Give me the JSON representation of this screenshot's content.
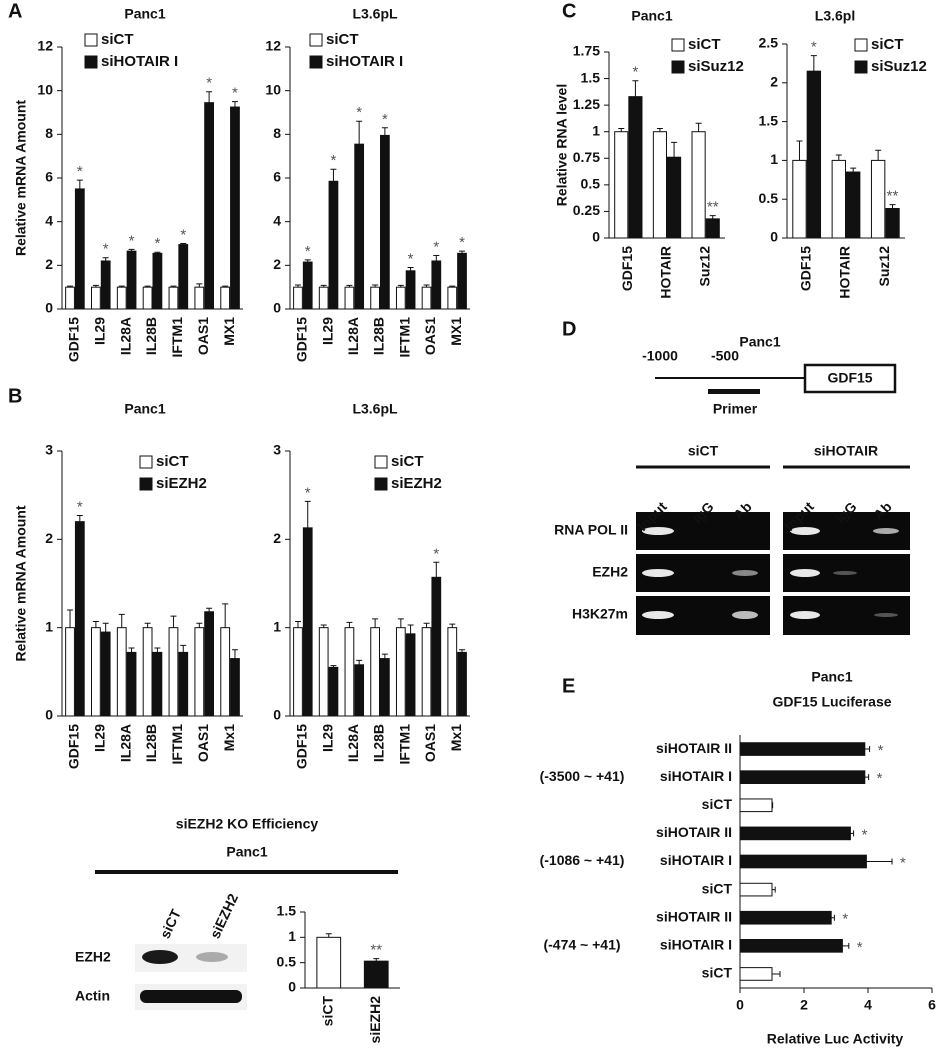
{
  "panel_labels": [
    "A",
    "B",
    "C",
    "D",
    "E"
  ],
  "chart_data": [
    {
      "type": "bar",
      "title": "Panc1",
      "y_label": "Relative mRNA Amount",
      "categories": [
        "GDF15",
        "IL29",
        "IL28A",
        "IL28B",
        "IFTM1",
        "OAS1",
        "MX1"
      ],
      "series": [
        {
          "name": "siCT",
          "color": "#ffffff",
          "values": [
            1,
            1,
            1,
            1,
            1,
            1,
            1
          ],
          "errors": [
            0.05,
            0.08,
            0.05,
            0.05,
            0.05,
            0.15,
            0.05
          ],
          "annotations": [
            null,
            null,
            null,
            null,
            null,
            null,
            null
          ]
        },
        {
          "name": "siHOTAIR I",
          "color": "#111111",
          "values": [
            5.5,
            2.2,
            2.65,
            2.55,
            2.95,
            9.45,
            9.25
          ],
          "errors": [
            0.4,
            0.15,
            0.08,
            0.05,
            0.05,
            0.5,
            0.25
          ],
          "annotations": [
            "*",
            "*",
            "*",
            "*",
            "*",
            "*",
            "*"
          ]
        }
      ],
      "ylim": [
        0,
        12
      ],
      "yticks": [
        0,
        2,
        4,
        6,
        8,
        10,
        12
      ],
      "grid": false
    },
    {
      "type": "bar",
      "title": "L3.6pL",
      "categories": [
        "GDF15",
        "IL29",
        "IL28A",
        "IL28B",
        "IFTM1",
        "OAS1",
        "MX1"
      ],
      "series": [
        {
          "name": "siCT",
          "color": "#ffffff",
          "values": [
            1,
            1,
            1,
            1,
            1,
            1,
            1
          ],
          "errors": [
            0.1,
            0.08,
            0.08,
            0.1,
            0.08,
            0.1,
            0.05
          ],
          "annotations": [
            null,
            null,
            null,
            null,
            null,
            null,
            null
          ]
        },
        {
          "name": "siHOTAIR I",
          "color": "#111111",
          "values": [
            2.15,
            5.85,
            7.55,
            7.95,
            1.75,
            2.2,
            2.55
          ],
          "errors": [
            0.1,
            0.55,
            1.05,
            0.35,
            0.15,
            0.25,
            0.1
          ],
          "annotations": [
            "*",
            "*",
            "*",
            "*",
            "*",
            "*",
            "*"
          ]
        }
      ],
      "ylim": [
        0,
        12
      ],
      "yticks": [
        0,
        2,
        4,
        6,
        8,
        10,
        12
      ],
      "grid": false
    },
    {
      "type": "bar",
      "title": "Panc1",
      "y_label": "Relative  RNA level",
      "categories": [
        "GDF15",
        "HOTAIR",
        "Suz12"
      ],
      "series": [
        {
          "name": "siCT",
          "color": "#ffffff",
          "values": [
            1,
            1,
            1
          ],
          "errors": [
            0.03,
            0.03,
            0.08
          ],
          "annotations": [
            null,
            null,
            null
          ]
        },
        {
          "name": "siSuz12",
          "color": "#111111",
          "values": [
            1.33,
            0.76,
            0.18
          ],
          "errors": [
            0.15,
            0.14,
            0.03
          ],
          "annotations": [
            "*",
            null,
            "**"
          ]
        }
      ],
      "ylim": [
        0,
        1.75
      ],
      "yticks": [
        0,
        0.25,
        0.5,
        0.75,
        1,
        1.25,
        1.5,
        1.75
      ],
      "grid": false
    },
    {
      "type": "bar",
      "title": "L3.6pl",
      "categories": [
        "GDF15",
        "HOTAIR",
        "Suz12"
      ],
      "series": [
        {
          "name": "siCT",
          "color": "#ffffff",
          "values": [
            1,
            1,
            1
          ],
          "errors": [
            0.25,
            0.07,
            0.13
          ],
          "annotations": [
            null,
            null,
            null
          ]
        },
        {
          "name": "siSuz12",
          "color": "#111111",
          "values": [
            2.15,
            0.85,
            0.38
          ],
          "errors": [
            0.2,
            0.05,
            0.05
          ],
          "annotations": [
            "*",
            null,
            "**"
          ]
        }
      ],
      "ylim": [
        0,
        2.5
      ],
      "yticks": [
        0,
        0.5,
        1,
        1.5,
        2,
        2.5
      ],
      "grid": false
    },
    {
      "type": "bar",
      "title": "Panc1",
      "y_label": "Relative mRNA Amount",
      "categories": [
        "GDF15",
        "IL29",
        "IL28A",
        "IL28B",
        "IFTM1",
        "OAS1",
        "Mx1"
      ],
      "series": [
        {
          "name": "siCT",
          "color": "#ffffff",
          "values": [
            1,
            1,
            1,
            1,
            1,
            1,
            1
          ],
          "errors": [
            0.2,
            0.07,
            0.15,
            0.05,
            0.13,
            0.05,
            0.27
          ],
          "annotations": [
            null,
            null,
            null,
            null,
            null,
            null,
            null
          ]
        },
        {
          "name": "siEZH2",
          "color": "#111111",
          "values": [
            2.2,
            0.95,
            0.72,
            0.72,
            0.72,
            1.18,
            0.65
          ],
          "errors": [
            0.07,
            0.1,
            0.05,
            0.05,
            0.08,
            0.04,
            0.1
          ],
          "annotations": [
            "*",
            null,
            null,
            null,
            null,
            null,
            null
          ]
        }
      ],
      "ylim": [
        0,
        3
      ],
      "yticks": [
        0,
        1,
        2,
        3
      ],
      "grid": false
    },
    {
      "type": "bar",
      "title": "L3.6pL",
      "categories": [
        "GDF15",
        "IL29",
        "IL28A",
        "IL28B",
        "IFTM1",
        "OAS1",
        "Mx1"
      ],
      "series": [
        {
          "name": "siCT",
          "color": "#ffffff",
          "values": [
            1,
            1,
            1,
            1,
            1,
            1,
            1
          ],
          "errors": [
            0.07,
            0.03,
            0.06,
            0.1,
            0.1,
            0.05,
            0.04
          ],
          "annotations": [
            null,
            null,
            null,
            null,
            null,
            null,
            null
          ]
        },
        {
          "name": "siEZH2",
          "color": "#111111",
          "values": [
            2.13,
            0.55,
            0.58,
            0.65,
            0.93,
            1.57,
            0.72
          ],
          "errors": [
            0.3,
            0.02,
            0.05,
            0.05,
            0.1,
            0.17,
            0.03
          ],
          "annotations": [
            "*",
            null,
            null,
            null,
            null,
            "*",
            null
          ]
        }
      ],
      "ylim": [
        0,
        3
      ],
      "yticks": [
        0,
        1,
        2,
        3
      ],
      "grid": false
    },
    {
      "type": "bar",
      "categories": [
        "siCT",
        "siEZH2"
      ],
      "values": [
        1,
        0.53
      ],
      "errors": [
        0.07,
        0.05
      ],
      "colors": [
        "#ffffff",
        "#111111"
      ],
      "annotations": [
        null,
        "**"
      ],
      "ylim": [
        0,
        1.5
      ],
      "yticks": [
        0,
        0.5,
        1,
        1.5
      ],
      "grid": false
    },
    {
      "type": "barh",
      "title": "Panc1",
      "subtitle": "GDF15 Luciferase",
      "x_label": "Relative Luc Activity",
      "categories": [
        "siHOTAIR II",
        "siHOTAIR I",
        "siCT",
        "siHOTAIR II",
        "siHOTAIR I",
        "siCT",
        "siHOTAIR II",
        "siHOTAIR I",
        "siCT"
      ],
      "groups": [
        "(-3500 ~ +41)",
        "(-1086 ~ +41)",
        "(-474 ~ +41)"
      ],
      "values": [
        3.9,
        3.9,
        1,
        3.45,
        3.95,
        1,
        2.85,
        3.2,
        1
      ],
      "errors": [
        0.15,
        0.12,
        0.02,
        0.1,
        0.8,
        0.1,
        0.1,
        0.2,
        0.25
      ],
      "colors": [
        "#111111",
        "#111111",
        "#ffffff",
        "#111111",
        "#111111",
        "#ffffff",
        "#111111",
        "#111111",
        "#ffffff"
      ],
      "annotations": [
        "*",
        "*",
        null,
        "*",
        "*",
        null,
        "*",
        "*",
        null
      ],
      "xlim": [
        0,
        6
      ],
      "xticks": [
        0,
        2,
        4,
        6
      ],
      "grid": false
    }
  ],
  "ko_efficiency": {
    "title": "siEZH2 KO Efficiency",
    "subtitle": "Panc1",
    "lanes": [
      "siCT",
      "siEZH2"
    ],
    "rows": [
      "EZH2",
      "Actin"
    ]
  },
  "chip": {
    "title": "Panc1",
    "positions": [
      "-1000",
      "-500"
    ],
    "gene": "GDF15",
    "primer": "Primer",
    "groups": [
      "siCT",
      "siHOTAIR"
    ],
    "lanes": [
      "Input",
      "IgG",
      "Ab",
      "Input",
      "IgG",
      "Ab"
    ],
    "rows": [
      "RNA POL II",
      "EZH2",
      "H3K27m"
    ]
  }
}
